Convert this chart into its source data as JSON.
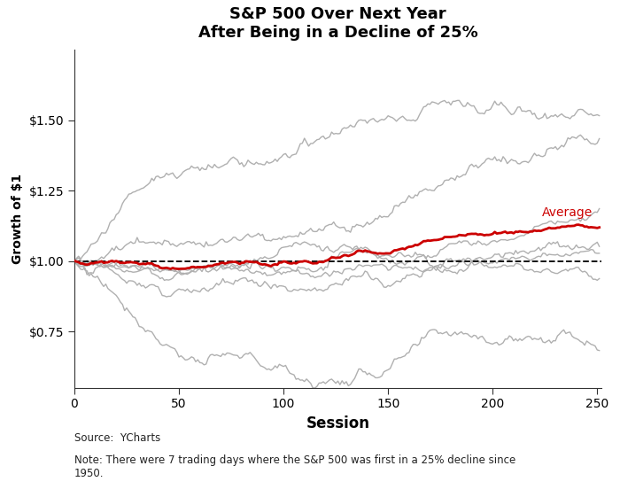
{
  "title_line1": "S&P 500 Over Next Year",
  "title_line2": "After Being in a Decline of 25%",
  "xlabel": "Session",
  "ylabel": "Growth of $1",
  "xlim": [
    0,
    252
  ],
  "ylim": [
    0.55,
    1.75
  ],
  "yticks": [
    0.75,
    1.0,
    1.25,
    1.5
  ],
  "xticks": [
    0,
    50,
    100,
    150,
    200,
    250
  ],
  "dashed_line_y": 1.0,
  "gray_color": "#b0b0b0",
  "red_color": "#cc0000",
  "dashed_color": "#000000",
  "avg_label": "Average",
  "source_text": "Source:  YCharts",
  "note_text": "Note: There were 7 trading days where the S&P 500 was first in a 25% decline since\n1950.",
  "n_sessions": 252,
  "background_color": "#ffffff"
}
